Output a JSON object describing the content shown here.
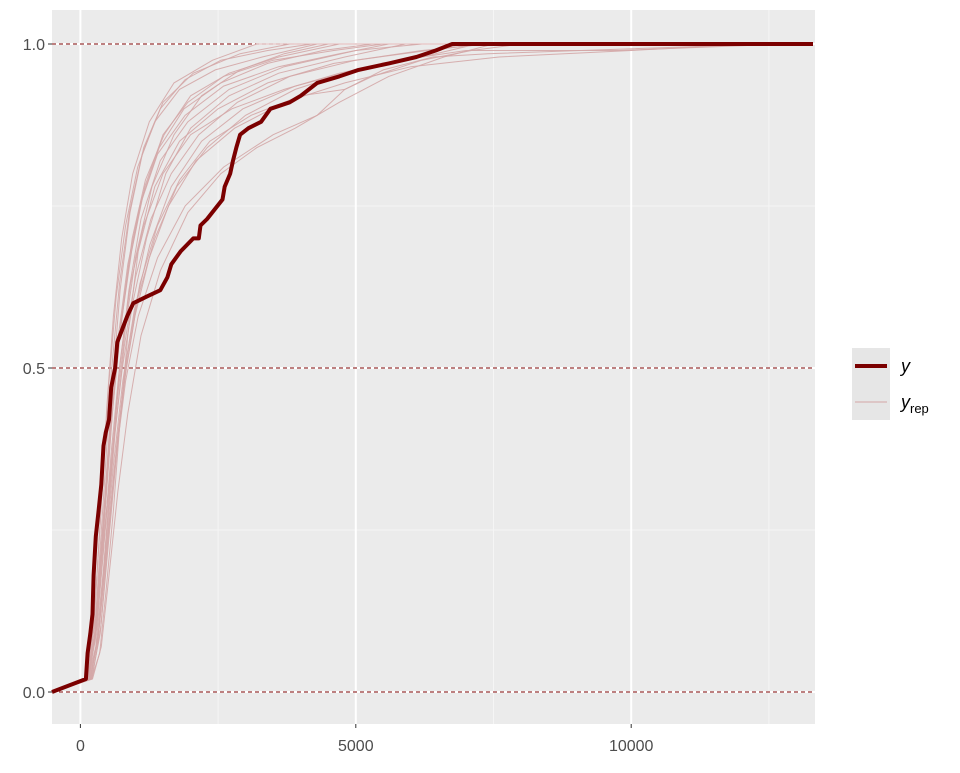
{
  "colors": {
    "panel_background": "#EBEBEB",
    "grid_major": "#FFFFFF",
    "grid_minor": "#F5F5F5",
    "y_line": "#7B0000",
    "yrep_line": "#D4A7A7",
    "reference_line": "#7B0000",
    "legend_key_background": "#E6E6E6"
  },
  "chart_data": {
    "type": "line",
    "title": "",
    "xlabel": "",
    "ylabel": "",
    "xlim": [
      -550,
      13300
    ],
    "ylim": [
      -0.05,
      1.05
    ],
    "x_ticks": [
      {
        "value": 0,
        "label": "0"
      },
      {
        "value": 5000,
        "label": "5000"
      },
      {
        "value": 10000,
        "label": "10000"
      }
    ],
    "y_ticks": [
      {
        "value": 0,
        "label": "0.0"
      },
      {
        "value": 0.5,
        "label": "0.5"
      },
      {
        "value": 1,
        "label": "1.0"
      }
    ],
    "reference_lines_y": [
      0,
      0.5,
      1
    ],
    "grid": true,
    "legend": {
      "position": "right",
      "entries": [
        {
          "series": "y",
          "label": "y",
          "subscript": ""
        },
        {
          "series": "yrep",
          "label": "y",
          "subscript": "rep"
        }
      ]
    },
    "series_y": {
      "points": [
        [
          -550,
          0
        ],
        [
          100,
          0.02
        ],
        [
          130,
          0.06
        ],
        [
          180,
          0.09
        ],
        [
          220,
          0.12
        ],
        [
          240,
          0.18
        ],
        [
          280,
          0.24
        ],
        [
          330,
          0.28
        ],
        [
          380,
          0.32
        ],
        [
          420,
          0.38
        ],
        [
          460,
          0.4
        ],
        [
          520,
          0.42
        ],
        [
          560,
          0.47
        ],
        [
          630,
          0.5
        ],
        [
          670,
          0.54
        ],
        [
          760,
          0.56
        ],
        [
          850,
          0.58
        ],
        [
          960,
          0.6
        ],
        [
          1200,
          0.61
        ],
        [
          1450,
          0.62
        ],
        [
          1580,
          0.64
        ],
        [
          1650,
          0.66
        ],
        [
          1820,
          0.68
        ],
        [
          2050,
          0.7
        ],
        [
          2150,
          0.7
        ],
        [
          2180,
          0.72
        ],
        [
          2300,
          0.73
        ],
        [
          2580,
          0.76
        ],
        [
          2620,
          0.78
        ],
        [
          2720,
          0.8
        ],
        [
          2770,
          0.82
        ],
        [
          2830,
          0.84
        ],
        [
          2900,
          0.86
        ],
        [
          3050,
          0.87
        ],
        [
          3280,
          0.88
        ],
        [
          3450,
          0.9
        ],
        [
          3800,
          0.91
        ],
        [
          4000,
          0.92
        ],
        [
          4300,
          0.94
        ],
        [
          4700,
          0.95
        ],
        [
          5050,
          0.96
        ],
        [
          5600,
          0.97
        ],
        [
          6100,
          0.98
        ],
        [
          6450,
          0.99
        ],
        [
          6750,
          1.0
        ],
        [
          13300,
          1.0
        ]
      ]
    },
    "series_yrep": [
      [
        [
          -550,
          0
        ],
        [
          120,
          0.02
        ],
        [
          260,
          0.08
        ],
        [
          380,
          0.2
        ],
        [
          520,
          0.32
        ],
        [
          680,
          0.46
        ],
        [
          830,
          0.57
        ],
        [
          1000,
          0.67
        ],
        [
          1300,
          0.78
        ],
        [
          1700,
          0.86
        ],
        [
          2200,
          0.92
        ],
        [
          2900,
          0.96
        ],
        [
          3700,
          0.985
        ],
        [
          4500,
          1.0
        ],
        [
          13300,
          1.0
        ]
      ],
      [
        [
          -550,
          0
        ],
        [
          150,
          0.02
        ],
        [
          300,
          0.1
        ],
        [
          440,
          0.24
        ],
        [
          600,
          0.38
        ],
        [
          760,
          0.5
        ],
        [
          950,
          0.6
        ],
        [
          1200,
          0.7
        ],
        [
          1550,
          0.8
        ],
        [
          2000,
          0.87
        ],
        [
          2700,
          0.92
        ],
        [
          3600,
          0.955
        ],
        [
          4800,
          0.98
        ],
        [
          5900,
          1.0
        ],
        [
          13300,
          1.0
        ]
      ],
      [
        [
          -550,
          0
        ],
        [
          200,
          0.02
        ],
        [
          350,
          0.06
        ],
        [
          470,
          0.16
        ],
        [
          600,
          0.28
        ],
        [
          720,
          0.42
        ],
        [
          860,
          0.55
        ],
        [
          1050,
          0.68
        ],
        [
          1350,
          0.78
        ],
        [
          1800,
          0.85
        ],
        [
          2500,
          0.9
        ],
        [
          3400,
          0.94
        ],
        [
          4600,
          0.97
        ],
        [
          6200,
          0.99
        ],
        [
          7400,
          1.0
        ],
        [
          13300,
          1.0
        ]
      ],
      [
        [
          -550,
          0
        ],
        [
          100,
          0.02
        ],
        [
          240,
          0.1
        ],
        [
          360,
          0.26
        ],
        [
          480,
          0.44
        ],
        [
          600,
          0.58
        ],
        [
          750,
          0.7
        ],
        [
          950,
          0.8
        ],
        [
          1250,
          0.88
        ],
        [
          1700,
          0.94
        ],
        [
          2400,
          0.975
        ],
        [
          3200,
          1.0
        ],
        [
          13300,
          1.0
        ]
      ],
      [
        [
          -550,
          0
        ],
        [
          180,
          0.02
        ],
        [
          330,
          0.09
        ],
        [
          470,
          0.22
        ],
        [
          640,
          0.36
        ],
        [
          820,
          0.48
        ],
        [
          1050,
          0.58
        ],
        [
          1400,
          0.67
        ],
        [
          1900,
          0.75
        ],
        [
          2600,
          0.81
        ],
        [
          3500,
          0.86
        ],
        [
          4300,
          0.89
        ],
        [
          4800,
          0.93
        ],
        [
          5500,
          0.96
        ],
        [
          6400,
          0.98
        ],
        [
          7400,
          0.985
        ],
        [
          12500,
          1.0
        ],
        [
          13300,
          1.0
        ]
      ],
      [
        [
          -550,
          0
        ],
        [
          140,
          0.02
        ],
        [
          280,
          0.07
        ],
        [
          420,
          0.19
        ],
        [
          560,
          0.34
        ],
        [
          700,
          0.49
        ],
        [
          880,
          0.62
        ],
        [
          1100,
          0.73
        ],
        [
          1450,
          0.82
        ],
        [
          1950,
          0.88
        ],
        [
          2700,
          0.93
        ],
        [
          3700,
          0.965
        ],
        [
          5000,
          0.99
        ],
        [
          6200,
          1.0
        ],
        [
          13300,
          1.0
        ]
      ],
      [
        [
          -550,
          0
        ],
        [
          120,
          0.02
        ],
        [
          260,
          0.09
        ],
        [
          400,
          0.25
        ],
        [
          540,
          0.41
        ],
        [
          690,
          0.55
        ],
        [
          860,
          0.66
        ],
        [
          1080,
          0.75
        ],
        [
          1400,
          0.83
        ],
        [
          1900,
          0.89
        ],
        [
          2600,
          0.935
        ],
        [
          3600,
          0.965
        ],
        [
          4700,
          0.985
        ],
        [
          5600,
          1.0
        ],
        [
          13300,
          1.0
        ]
      ],
      [
        [
          -550,
          0
        ],
        [
          220,
          0.02
        ],
        [
          380,
          0.07
        ],
        [
          520,
          0.18
        ],
        [
          680,
          0.31
        ],
        [
          860,
          0.43
        ],
        [
          1100,
          0.55
        ],
        [
          1450,
          0.65
        ],
        [
          1950,
          0.74
        ],
        [
          2550,
          0.8
        ],
        [
          3200,
          0.84
        ],
        [
          3900,
          0.87
        ],
        [
          4700,
          0.91
        ],
        [
          5600,
          0.95
        ],
        [
          6600,
          0.98
        ],
        [
          7500,
          1.0
        ],
        [
          13300,
          1.0
        ]
      ],
      [
        [
          -550,
          0
        ],
        [
          160,
          0.02
        ],
        [
          300,
          0.12
        ],
        [
          430,
          0.28
        ],
        [
          570,
          0.46
        ],
        [
          720,
          0.62
        ],
        [
          900,
          0.74
        ],
        [
          1150,
          0.84
        ],
        [
          1500,
          0.91
        ],
        [
          2050,
          0.955
        ],
        [
          2900,
          0.985
        ],
        [
          3800,
          1.0
        ],
        [
          13300,
          1.0
        ]
      ],
      [
        [
          -550,
          0
        ],
        [
          130,
          0.02
        ],
        [
          270,
          0.08
        ],
        [
          410,
          0.21
        ],
        [
          560,
          0.37
        ],
        [
          720,
          0.51
        ],
        [
          910,
          0.63
        ],
        [
          1150,
          0.72
        ],
        [
          1500,
          0.8
        ],
        [
          2000,
          0.86
        ],
        [
          2750,
          0.9
        ],
        [
          3700,
          0.93
        ],
        [
          4700,
          0.955
        ],
        [
          5800,
          0.975
        ],
        [
          7000,
          0.99
        ],
        [
          9800,
          0.99
        ],
        [
          12800,
          1.0
        ],
        [
          13300,
          1.0
        ]
      ],
      [
        [
          -550,
          0
        ],
        [
          190,
          0.02
        ],
        [
          340,
          0.1
        ],
        [
          480,
          0.25
        ],
        [
          630,
          0.4
        ],
        [
          790,
          0.53
        ],
        [
          1000,
          0.64
        ],
        [
          1280,
          0.73
        ],
        [
          1650,
          0.8
        ],
        [
          2150,
          0.86
        ],
        [
          2850,
          0.91
        ],
        [
          3800,
          0.95
        ],
        [
          5000,
          0.975
        ],
        [
          6300,
          0.99
        ],
        [
          7300,
          1.0
        ],
        [
          13300,
          1.0
        ]
      ],
      [
        [
          -550,
          0
        ],
        [
          110,
          0.02
        ],
        [
          250,
          0.11
        ],
        [
          380,
          0.29
        ],
        [
          510,
          0.47
        ],
        [
          650,
          0.61
        ],
        [
          820,
          0.72
        ],
        [
          1040,
          0.81
        ],
        [
          1350,
          0.88
        ],
        [
          1800,
          0.93
        ],
        [
          2450,
          0.96
        ],
        [
          3300,
          0.98
        ],
        [
          4300,
          1.0
        ],
        [
          13300,
          1.0
        ]
      ],
      [
        [
          -550,
          0
        ],
        [
          170,
          0.02
        ],
        [
          320,
          0.08
        ],
        [
          460,
          0.2
        ],
        [
          610,
          0.34
        ],
        [
          780,
          0.47
        ],
        [
          990,
          0.58
        ],
        [
          1250,
          0.67
        ],
        [
          1600,
          0.75
        ],
        [
          2100,
          0.82
        ],
        [
          2800,
          0.87
        ],
        [
          3700,
          0.91
        ],
        [
          4800,
          0.94
        ],
        [
          6000,
          0.965
        ],
        [
          7600,
          0.98
        ],
        [
          10000,
          0.99
        ],
        [
          12200,
          1.0
        ],
        [
          13300,
          1.0
        ]
      ],
      [
        [
          -550,
          0
        ],
        [
          140,
          0.02
        ],
        [
          290,
          0.1
        ],
        [
          430,
          0.26
        ],
        [
          580,
          0.43
        ],
        [
          740,
          0.57
        ],
        [
          930,
          0.68
        ],
        [
          1170,
          0.78
        ],
        [
          1500,
          0.86
        ],
        [
          1950,
          0.91
        ],
        [
          2600,
          0.95
        ],
        [
          3500,
          0.975
        ],
        [
          4600,
          0.99
        ],
        [
          5500,
          1.0
        ],
        [
          13300,
          1.0
        ]
      ],
      [
        [
          -550,
          0
        ],
        [
          200,
          0.02
        ],
        [
          360,
          0.09
        ],
        [
          500,
          0.22
        ],
        [
          660,
          0.37
        ],
        [
          830,
          0.5
        ],
        [
          1050,
          0.61
        ],
        [
          1350,
          0.7
        ],
        [
          1750,
          0.78
        ],
        [
          2300,
          0.84
        ],
        [
          3000,
          0.89
        ],
        [
          3900,
          0.93
        ],
        [
          5000,
          0.96
        ],
        [
          6200,
          0.98
        ],
        [
          7200,
          1.0
        ],
        [
          13300,
          1.0
        ]
      ],
      [
        [
          -550,
          0
        ],
        [
          130,
          0.02
        ],
        [
          280,
          0.12
        ],
        [
          420,
          0.3
        ],
        [
          560,
          0.49
        ],
        [
          710,
          0.63
        ],
        [
          890,
          0.74
        ],
        [
          1120,
          0.83
        ],
        [
          1450,
          0.9
        ],
        [
          1900,
          0.945
        ],
        [
          2550,
          0.975
        ],
        [
          3400,
          0.99
        ],
        [
          4200,
          1.0
        ],
        [
          13300,
          1.0
        ]
      ],
      [
        [
          -550,
          0
        ],
        [
          160,
          0.02
        ],
        [
          310,
          0.08
        ],
        [
          450,
          0.21
        ],
        [
          600,
          0.35
        ],
        [
          770,
          0.48
        ],
        [
          980,
          0.59
        ],
        [
          1260,
          0.69
        ],
        [
          1650,
          0.78
        ],
        [
          2200,
          0.85
        ],
        [
          2950,
          0.9
        ],
        [
          3900,
          0.935
        ],
        [
          5000,
          0.96
        ],
        [
          6100,
          0.98
        ],
        [
          6900,
          1.0
        ],
        [
          13300,
          1.0
        ]
      ],
      [
        [
          -550,
          0
        ],
        [
          120,
          0.02
        ],
        [
          260,
          0.09
        ],
        [
          400,
          0.24
        ],
        [
          540,
          0.4
        ],
        [
          700,
          0.54
        ],
        [
          880,
          0.66
        ],
        [
          1110,
          0.76
        ],
        [
          1430,
          0.84
        ],
        [
          1880,
          0.9
        ],
        [
          2550,
          0.94
        ],
        [
          3400,
          0.97
        ],
        [
          4400,
          0.99
        ],
        [
          5300,
          1.0
        ],
        [
          13300,
          1.0
        ]
      ],
      [
        [
          -550,
          0
        ],
        [
          210,
          0.02
        ],
        [
          370,
          0.1
        ],
        [
          510,
          0.24
        ],
        [
          670,
          0.39
        ],
        [
          850,
          0.52
        ],
        [
          1080,
          0.63
        ],
        [
          1400,
          0.72
        ],
        [
          1800,
          0.79
        ],
        [
          2350,
          0.85
        ],
        [
          3100,
          0.89
        ],
        [
          4000,
          0.92
        ],
        [
          4800,
          0.93
        ],
        [
          5300,
          0.95
        ],
        [
          6200,
          0.975
        ],
        [
          7100,
          0.99
        ],
        [
          8000,
          1.0
        ],
        [
          13300,
          1.0
        ]
      ],
      [
        [
          -550,
          0
        ],
        [
          150,
          0.02
        ],
        [
          300,
          0.11
        ],
        [
          440,
          0.27
        ],
        [
          590,
          0.44
        ],
        [
          750,
          0.58
        ],
        [
          940,
          0.7
        ],
        [
          1180,
          0.79
        ],
        [
          1520,
          0.86
        ],
        [
          2000,
          0.92
        ],
        [
          2700,
          0.955
        ],
        [
          3600,
          0.98
        ],
        [
          4700,
          1.0
        ],
        [
          13300,
          1.0
        ]
      ]
    ]
  }
}
